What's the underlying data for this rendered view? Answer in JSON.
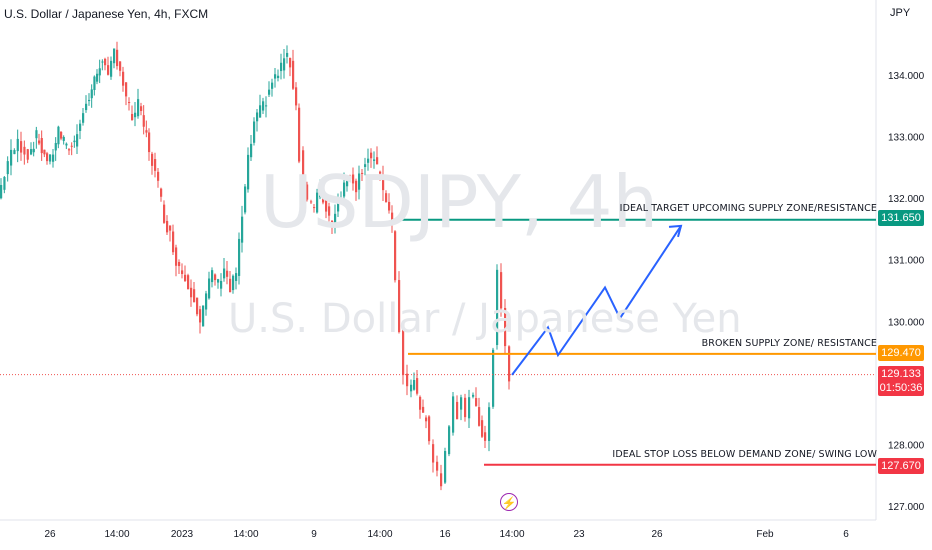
{
  "header": {
    "title": "U.S. Dollar / Japanese Yen, 4h, FXCM",
    "currency": "JPY"
  },
  "watermark": {
    "symbol": "USDJPY, 4h",
    "name": "U.S. Dollar / Japanese Yen"
  },
  "badges": {
    "target": "131.650",
    "broken": "129.470",
    "current": "129.133",
    "countdown": "01:50:36",
    "stop": "127.670"
  },
  "annotations": {
    "target": "IDEAL TARGET UPCOMING SUPPLY ZONE/RESISTANCE",
    "broken": "BROKEN SUPPLY ZONE/ RESISTANCE",
    "stop": "IDEAL STOP LOSS BELOW DEMAND ZONE/ SWING LOW"
  },
  "colors": {
    "up": "#26a69a",
    "down": "#ef5350",
    "target_line": "#089981",
    "broken_line": "#ff9800",
    "stop_line": "#f23645",
    "projection": "#2962ff",
    "current_badge": "#f23645",
    "lightning": "#9c27b0"
  },
  "icons": {
    "event": "lightning-icon"
  },
  "chart_data": {
    "type": "candlestick",
    "ylim": [
      126.8,
      135.1
    ],
    "y_ticks": [
      "127.000",
      "128.000",
      "129.000",
      "130.000",
      "131.000",
      "132.000",
      "133.000",
      "134.000"
    ],
    "x_ticks": [
      "26",
      "14:00",
      "2023",
      "14:00",
      "9",
      "14:00",
      "16",
      "14:00",
      "23",
      "26",
      "Feb",
      "6"
    ],
    "levels": [
      {
        "value": 131.65,
        "label": "IDEAL TARGET UPCOMING SUPPLY ZONE/RESISTANCE"
      },
      {
        "value": 129.47,
        "label": "BROKEN SUPPLY ZONE/ RESISTANCE"
      },
      {
        "value": 127.67,
        "label": "IDEAL STOP LOSS BELOW DEMAND ZONE/ SWING LOW"
      }
    ],
    "current_price": 129.133,
    "close_path": [
      [
        0,
        132.0
      ],
      [
        10,
        132.6
      ],
      [
        20,
        132.9
      ],
      [
        30,
        132.7
      ],
      [
        38,
        133.0
      ],
      [
        46,
        132.7
      ],
      [
        52,
        132.6
      ],
      [
        60,
        133.1
      ],
      [
        68,
        132.8
      ],
      [
        76,
        132.9
      ],
      [
        82,
        133.3
      ],
      [
        88,
        133.5
      ],
      [
        96,
        133.9
      ],
      [
        104,
        134.3
      ],
      [
        110,
        133.9
      ],
      [
        116,
        134.4
      ],
      [
        122,
        134.1
      ],
      [
        128,
        133.6
      ],
      [
        134,
        133.3
      ],
      [
        140,
        133.5
      ],
      [
        148,
        133.0
      ],
      [
        154,
        132.6
      ],
      [
        160,
        132.2
      ],
      [
        166,
        131.7
      ],
      [
        172,
        131.4
      ],
      [
        178,
        131.0
      ],
      [
        184,
        130.8
      ],
      [
        190,
        130.6
      ],
      [
        196,
        130.4
      ],
      [
        202,
        130.0
      ],
      [
        208,
        130.4
      ],
      [
        214,
        130.8
      ],
      [
        220,
        130.6
      ],
      [
        226,
        130.9
      ],
      [
        232,
        130.5
      ],
      [
        238,
        130.8
      ],
      [
        244,
        131.7
      ],
      [
        250,
        132.6
      ],
      [
        256,
        133.2
      ],
      [
        262,
        133.4
      ],
      [
        268,
        133.6
      ],
      [
        274,
        133.9
      ],
      [
        280,
        134.0
      ],
      [
        286,
        134.3
      ],
      [
        292,
        134.2
      ],
      [
        298,
        133.5
      ],
      [
        302,
        132.7
      ],
      [
        306,
        132.3
      ],
      [
        310,
        132.0
      ],
      [
        316,
        131.8
      ],
      [
        322,
        132.2
      ],
      [
        328,
        131.8
      ],
      [
        334,
        131.6
      ],
      [
        340,
        132.0
      ],
      [
        346,
        132.2
      ],
      [
        352,
        132.4
      ],
      [
        358,
        132.2
      ],
      [
        364,
        132.5
      ],
      [
        370,
        132.7
      ],
      [
        376,
        132.6
      ],
      [
        382,
        132.3
      ],
      [
        388,
        132.0
      ],
      [
        394,
        131.5
      ],
      [
        398,
        130.7
      ],
      [
        402,
        129.9
      ],
      [
        406,
        129.1
      ],
      [
        410,
        128.9
      ],
      [
        416,
        129.0
      ],
      [
        422,
        128.6
      ],
      [
        428,
        128.4
      ],
      [
        432,
        128.0
      ],
      [
        436,
        127.7
      ],
      [
        440,
        127.6
      ],
      [
        444,
        127.4
      ],
      [
        448,
        127.8
      ],
      [
        452,
        128.2
      ],
      [
        456,
        128.7
      ],
      [
        460,
        128.5
      ],
      [
        464,
        128.8
      ],
      [
        468,
        128.5
      ],
      [
        472,
        128.8
      ],
      [
        478,
        128.6
      ],
      [
        484,
        128.2
      ],
      [
        488,
        128.1
      ],
      [
        492,
        128.6
      ],
      [
        496,
        129.6
      ],
      [
        500,
        130.8
      ],
      [
        504,
        130.3
      ],
      [
        508,
        129.6
      ],
      [
        512,
        129.133
      ]
    ],
    "projection_path": [
      [
        512,
        129.13
      ],
      [
        548,
        129.9
      ],
      [
        558,
        129.45
      ],
      [
        605,
        130.55
      ],
      [
        620,
        130.05
      ],
      [
        681,
        131.55
      ]
    ]
  }
}
